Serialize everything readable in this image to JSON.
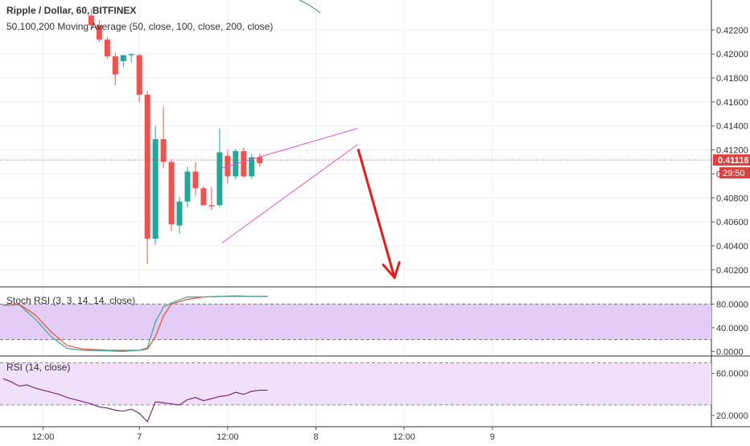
{
  "header": {
    "symbol_line": "Ripple / Dollar, 60, BITFINEX",
    "ma_line": "50,100,200 Moving Average (50, close, 100, close, 200, close)"
  },
  "price_badge": {
    "value": "0.41116",
    "countdown": "29:50",
    "color": "#e04040"
  },
  "colors": {
    "up": "#26a69a",
    "down": "#ef5350",
    "wedge": "#e055c8",
    "arrow": "#e41c1c",
    "stoch_k": "#4fa3a0",
    "stoch_d": "#e8573a",
    "stoch_band": "#e3cdf7",
    "rsi_line": "#7b2a7b",
    "rsi_band": "#f0e0fa"
  },
  "indicators": {
    "stoch_label": "Stoch RSI (3, 3, 14, 14, close)",
    "rsi_label": "RSI (14, close)"
  },
  "chart_data": {
    "type": "candlestick",
    "price_axis": {
      "ticks": [
        "0.42200",
        "0.42000",
        "0.41800",
        "0.41600",
        "0.41400",
        "0.41200",
        "0.41000",
        "0.40800",
        "0.40600",
        "0.40400",
        "0.40200"
      ],
      "range": [
        0.40065,
        0.4245
      ]
    },
    "time_axis": {
      "labels": [
        "12:00",
        "7",
        "12:00",
        "8",
        "12:00",
        "9"
      ],
      "label_bar_index": [
        5,
        17,
        28,
        39,
        50,
        61
      ]
    },
    "candles": [
      {
        "i": 11,
        "o": 0.4232,
        "h": 0.4238,
        "l": 0.422,
        "c": 0.4224
      },
      {
        "i": 12,
        "o": 0.4224,
        "h": 0.4228,
        "l": 0.421,
        "c": 0.4212
      },
      {
        "i": 13,
        "o": 0.4212,
        "h": 0.4214,
        "l": 0.4196,
        "c": 0.4198
      },
      {
        "i": 14,
        "o": 0.4198,
        "h": 0.4201,
        "l": 0.4174,
        "c": 0.4183
      },
      {
        "i": 15,
        "o": 0.4194,
        "h": 0.4199,
        "l": 0.4189,
        "c": 0.4199
      },
      {
        "i": 16,
        "o": 0.4199,
        "h": 0.42,
        "l": 0.4193,
        "c": 0.42
      },
      {
        "i": 17,
        "o": 0.4199,
        "h": 0.42,
        "l": 0.416,
        "c": 0.4166
      },
      {
        "i": 18,
        "o": 0.4166,
        "h": 0.4169,
        "l": 0.4025,
        "c": 0.4046
      },
      {
        "i": 19,
        "o": 0.4046,
        "h": 0.414,
        "l": 0.4041,
        "c": 0.4129
      },
      {
        "i": 20,
        "o": 0.4129,
        "h": 0.4156,
        "l": 0.4105,
        "c": 0.411
      },
      {
        "i": 21,
        "o": 0.411,
        "h": 0.4112,
        "l": 0.4052,
        "c": 0.4058
      },
      {
        "i": 22,
        "o": 0.4057,
        "h": 0.4081,
        "l": 0.405,
        "c": 0.4077
      },
      {
        "i": 23,
        "o": 0.4077,
        "h": 0.4106,
        "l": 0.4072,
        "c": 0.4102
      },
      {
        "i": 24,
        "o": 0.4102,
        "h": 0.411,
        "l": 0.4082,
        "c": 0.4088
      },
      {
        "i": 25,
        "o": 0.4088,
        "h": 0.409,
        "l": 0.4073,
        "c": 0.4074
      },
      {
        "i": 26,
        "o": 0.4074,
        "h": 0.4089,
        "l": 0.407,
        "c": 0.4073
      },
      {
        "i": 27,
        "o": 0.4074,
        "h": 0.4138,
        "l": 0.4072,
        "c": 0.4118
      },
      {
        "i": 28,
        "o": 0.4115,
        "h": 0.412,
        "l": 0.4092,
        "c": 0.4098
      },
      {
        "i": 29,
        "o": 0.4098,
        "h": 0.4121,
        "l": 0.4095,
        "c": 0.4119
      },
      {
        "i": 30,
        "o": 0.4119,
        "h": 0.4122,
        "l": 0.4097,
        "c": 0.4098
      },
      {
        "i": 31,
        "o": 0.4098,
        "h": 0.4117,
        "l": 0.4096,
        "c": 0.4114
      },
      {
        "i": 32,
        "o": 0.4114,
        "h": 0.4117,
        "l": 0.4106,
        "c": 0.4109
      }
    ],
    "current_price": 0.41116,
    "stoch_rsi": {
      "axis_ticks": [
        "80.0000",
        "40.0000",
        "0.0000"
      ],
      "bands": [
        80,
        20
      ],
      "range": [
        -5,
        105
      ],
      "k": [
        [
          0,
          78
        ],
        [
          2,
          79
        ],
        [
          4,
          55
        ],
        [
          6,
          25
        ],
        [
          8,
          5
        ],
        [
          10,
          2
        ],
        [
          13,
          1
        ],
        [
          15,
          0
        ],
        [
          17,
          2
        ],
        [
          18,
          6
        ],
        [
          19,
          50
        ],
        [
          20,
          75
        ],
        [
          21,
          82
        ],
        [
          23,
          92
        ],
        [
          25,
          92
        ],
        [
          27,
          93
        ],
        [
          29,
          94
        ],
        [
          31,
          93
        ],
        [
          33,
          93
        ]
      ],
      "d": [
        [
          0,
          78
        ],
        [
          2,
          80
        ],
        [
          4,
          62
        ],
        [
          6,
          33
        ],
        [
          8,
          10
        ],
        [
          10,
          4
        ],
        [
          13,
          2
        ],
        [
          15,
          2
        ],
        [
          17,
          2
        ],
        [
          18,
          4
        ],
        [
          19,
          25
        ],
        [
          20,
          60
        ],
        [
          21,
          80
        ],
        [
          23,
          88
        ],
        [
          25,
          92
        ],
        [
          27,
          93
        ],
        [
          29,
          93
        ],
        [
          31,
          93
        ],
        [
          33,
          93
        ]
      ]
    },
    "rsi": {
      "axis_ticks": [
        "60.0000",
        "20.0000"
      ],
      "bands": [
        70,
        30
      ],
      "range": [
        10,
        75
      ],
      "values": [
        [
          0,
          55
        ],
        [
          1,
          52
        ],
        [
          2,
          48
        ],
        [
          3,
          49
        ],
        [
          4,
          46
        ],
        [
          5,
          44
        ],
        [
          6,
          42
        ],
        [
          7,
          40
        ],
        [
          8,
          37
        ],
        [
          9,
          35
        ],
        [
          10,
          33
        ],
        [
          11,
          31
        ],
        [
          12,
          28
        ],
        [
          13,
          27
        ],
        [
          14,
          25
        ],
        [
          15,
          24
        ],
        [
          16,
          26
        ],
        [
          17,
          22
        ],
        [
          18,
          14
        ],
        [
          19,
          33
        ],
        [
          20,
          32
        ],
        [
          21,
          31
        ],
        [
          22,
          30
        ],
        [
          23,
          35
        ],
        [
          24,
          37
        ],
        [
          25,
          34
        ],
        [
          26,
          36
        ],
        [
          27,
          38
        ],
        [
          28,
          39
        ],
        [
          29,
          42
        ],
        [
          30,
          40
        ],
        [
          31,
          43
        ],
        [
          32,
          44
        ],
        [
          33,
          44
        ]
      ]
    }
  }
}
